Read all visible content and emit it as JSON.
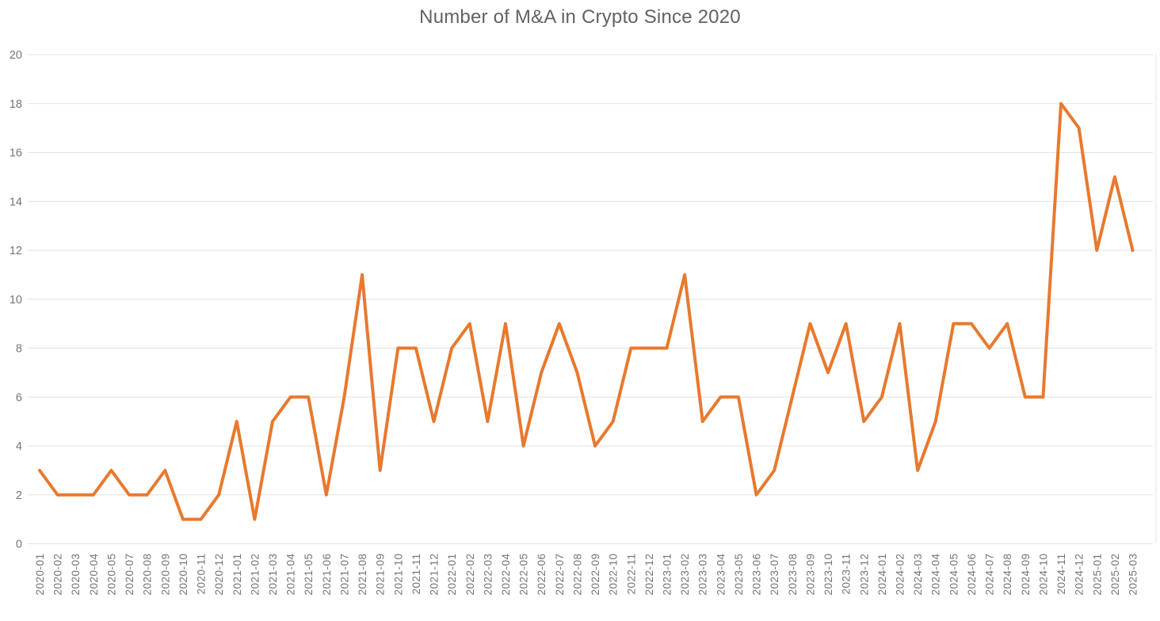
{
  "chart_data": {
    "type": "line",
    "title": "Number of M&A in Crypto Since 2020",
    "xlabel": "",
    "ylabel": "",
    "ylim": [
      0,
      20
    ],
    "yticks": [
      0,
      2,
      4,
      6,
      8,
      10,
      12,
      14,
      16,
      18,
      20
    ],
    "grid": true,
    "legend_position": "none",
    "categories": [
      "2020-01",
      "2020-02",
      "2020-03",
      "2020-04",
      "2020-05",
      "2020-07",
      "2020-08",
      "2020-09",
      "2020-10",
      "2020-11",
      "2020-12",
      "2021-01",
      "2021-02",
      "2021-03",
      "2021-04",
      "2021-05",
      "2021-06",
      "2021-07",
      "2021-08",
      "2021-09",
      "2021-10",
      "2021-11",
      "2021-12",
      "2022-01",
      "2022-02",
      "2022-03",
      "2022-04",
      "2022-05",
      "2022-06",
      "2022-07",
      "2022-08",
      "2022-09",
      "2022-10",
      "2022-11",
      "2022-12",
      "2023-01",
      "2023-02",
      "2023-03",
      "2023-04",
      "2023-05",
      "2023-06",
      "2023-07",
      "2023-08",
      "2023-09",
      "2023-10",
      "2023-11",
      "2023-12",
      "2024-01",
      "2024-02",
      "2024-03",
      "2024-04",
      "2024-05",
      "2024-06",
      "2024-07",
      "2024-08",
      "2024-09",
      "2024-10",
      "2024-11",
      "2024-12",
      "2025-01",
      "2025-02",
      "2025-03"
    ],
    "values": [
      3,
      2,
      2,
      2,
      3,
      2,
      2,
      3,
      1,
      1,
      2,
      5,
      1,
      5,
      6,
      6,
      2,
      6,
      11,
      3,
      8,
      8,
      5,
      8,
      9,
      5,
      9,
      4,
      7,
      9,
      7,
      4,
      5,
      8,
      8,
      8,
      11,
      5,
      6,
      6,
      2,
      3,
      6,
      9,
      7,
      9,
      5,
      6,
      9,
      3,
      5,
      9,
      9,
      8,
      9,
      6,
      6,
      18,
      17,
      12,
      15,
      12
    ],
    "series_name": "Number of M&A"
  },
  "colors": {
    "line": "#e8792e",
    "gridline": "#e2e2e2",
    "right_border": "#e0e0e0",
    "axis_label": "#757575",
    "title": "#5f6368",
    "background": "#ffffff"
  }
}
